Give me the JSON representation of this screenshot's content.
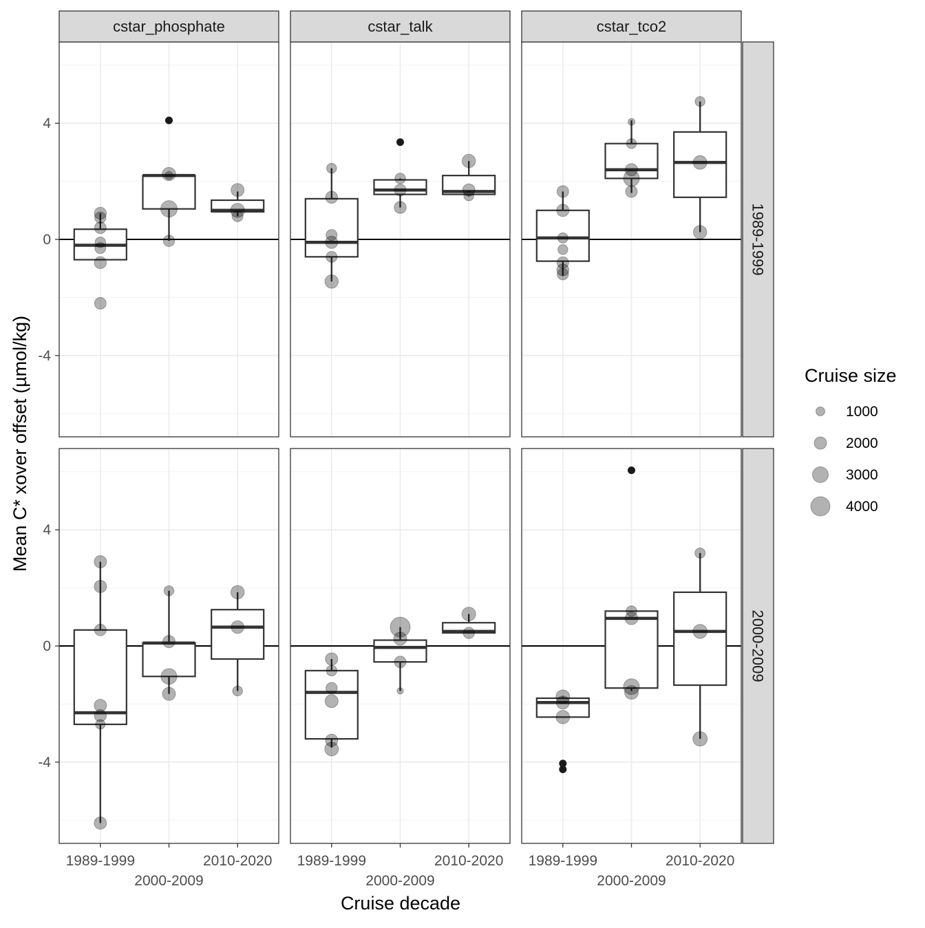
{
  "chart_data": {
    "type": "boxplot",
    "title": "",
    "xlabel": "Cruise decade",
    "ylabel": "Mean C* xover offset (µmol/kg)",
    "ylim": [
      -6.8,
      6.8
    ],
    "yticks": [
      -4,
      0,
      4
    ],
    "ytick_labels": [
      "-4",
      "0",
      "4"
    ],
    "grid": true,
    "categories": [
      "1989-1999",
      "2000-2009",
      "2010-2020"
    ],
    "column_facets": [
      "cstar_phosphate",
      "cstar_talk",
      "cstar_tco2"
    ],
    "row_facets": [
      "1989-1999",
      "2000-2009"
    ],
    "reference_line_y": 0,
    "legend": {
      "title": "Cruise size",
      "position": "right",
      "entries": [
        {
          "label": "1000",
          "value": 1000
        },
        {
          "label": "2000",
          "value": 2000
        },
        {
          "label": "3000",
          "value": 3000
        },
        {
          "label": "4000",
          "value": 4000
        }
      ]
    },
    "panels": [
      {
        "column": "cstar_phosphate",
        "row": "1989-1999",
        "boxes": [
          {
            "category": "1989-1999",
            "whisker_low": -0.7,
            "q1": -0.7,
            "median": -0.2,
            "q3": 0.35,
            "whisker_high": 0.9,
            "points": [
              {
                "y": 0.9,
                "size": 1900
              },
              {
                "y": 0.75,
                "size": 1700
              },
              {
                "y": 0.4,
                "size": 1800
              },
              {
                "y": -0.1,
                "size": 1500
              },
              {
                "y": -0.3,
                "size": 1600
              },
              {
                "y": -0.8,
                "size": 1900
              },
              {
                "y": -2.2,
                "size": 1800
              }
            ],
            "outliers": []
          },
          {
            "category": "2000-2009",
            "whisker_low": -0.05,
            "q1": 1.05,
            "median": 2.2,
            "q3": 2.2,
            "whisker_high": 2.2,
            "points": [
              {
                "y": 2.25,
                "size": 2300
              },
              {
                "y": 1.05,
                "size": 3200
              },
              {
                "y": -0.05,
                "size": 1700
              },
              {
                "y": 2.2,
                "size": 700
              }
            ],
            "outliers": [
              {
                "y": 4.1,
                "size": 800
              }
            ]
          },
          {
            "category": "2010-2020",
            "whisker_low": 0.8,
            "q1": 0.95,
            "median": 1.0,
            "q3": 1.35,
            "whisker_high": 1.65,
            "points": [
              {
                "y": 1.7,
                "size": 2200
              },
              {
                "y": 1.0,
                "size": 2500
              },
              {
                "y": 0.8,
                "size": 1600
              }
            ],
            "outliers": []
          }
        ]
      },
      {
        "column": "cstar_talk",
        "row": "1989-1999",
        "boxes": [
          {
            "category": "1989-1999",
            "whisker_low": -1.45,
            "q1": -0.6,
            "median": -0.1,
            "q3": 1.4,
            "whisker_high": 2.45,
            "points": [
              {
                "y": 2.45,
                "size": 1300
              },
              {
                "y": 1.45,
                "size": 1900
              },
              {
                "y": 0.15,
                "size": 1600
              },
              {
                "y": -0.1,
                "size": 2000
              },
              {
                "y": -0.6,
                "size": 1600
              },
              {
                "y": -1.45,
                "size": 2300
              }
            ],
            "outliers": []
          },
          {
            "category": "2000-2009",
            "whisker_low": 1.1,
            "q1": 1.55,
            "median": 1.7,
            "q3": 2.05,
            "whisker_high": 2.1,
            "points": [
              {
                "y": 2.1,
                "size": 1500
              },
              {
                "y": 1.7,
                "size": 1800
              },
              {
                "y": 1.1,
                "size": 1900
              }
            ],
            "outliers": [
              {
                "y": 3.35,
                "size": 3100
              }
            ]
          },
          {
            "category": "2010-2020",
            "whisker_low": 1.5,
            "q1": 1.55,
            "median": 1.65,
            "q3": 2.2,
            "whisker_high": 2.7,
            "points": [
              {
                "y": 2.7,
                "size": 2300
              },
              {
                "y": 1.7,
                "size": 2000
              },
              {
                "y": 1.5,
                "size": 1300
              }
            ],
            "outliers": []
          }
        ]
      },
      {
        "column": "cstar_tco2",
        "row": "1989-1999",
        "boxes": [
          {
            "category": "1989-1999",
            "whisker_low": -1.25,
            "q1": -0.75,
            "median": 0.05,
            "q3": 1.0,
            "whisker_high": 1.65,
            "points": [
              {
                "y": 1.65,
                "size": 1800
              },
              {
                "y": 1.0,
                "size": 2000
              },
              {
                "y": 0.05,
                "size": 1400
              },
              {
                "y": -0.35,
                "size": 1300
              },
              {
                "y": -0.8,
                "size": 1800
              },
              {
                "y": -1.05,
                "size": 1900
              },
              {
                "y": -1.2,
                "size": 1700
              }
            ],
            "outliers": []
          },
          {
            "category": "2000-2009",
            "whisker_low": 1.6,
            "q1": 2.1,
            "median": 2.4,
            "q3": 3.3,
            "whisker_high": 4.1,
            "points": [
              {
                "y": 4.05,
                "size": 400
              },
              {
                "y": 3.3,
                "size": 1300
              },
              {
                "y": 2.4,
                "size": 2000
              },
              {
                "y": 2.1,
                "size": 3000
              },
              {
                "y": 1.65,
                "size": 1800
              }
            ],
            "outliers": []
          },
          {
            "category": "2010-2020",
            "whisker_low": 0.25,
            "q1": 1.45,
            "median": 2.65,
            "q3": 3.7,
            "whisker_high": 4.75,
            "points": [
              {
                "y": 4.75,
                "size": 1300
              },
              {
                "y": 2.65,
                "size": 2400
              },
              {
                "y": 0.25,
                "size": 2300
              }
            ],
            "outliers": []
          }
        ]
      },
      {
        "column": "cstar_phosphate",
        "row": "2000-2009",
        "boxes": [
          {
            "category": "1989-1999",
            "whisker_low": -6.1,
            "q1": -2.7,
            "median": -2.3,
            "q3": 0.55,
            "whisker_high": 2.9,
            "points": [
              {
                "y": 2.9,
                "size": 2000
              },
              {
                "y": 2.05,
                "size": 2000
              },
              {
                "y": 0.55,
                "size": 1800
              },
              {
                "y": -2.05,
                "size": 2000
              },
              {
                "y": -2.4,
                "size": 1900
              },
              {
                "y": -2.7,
                "size": 1200
              },
              {
                "y": -6.1,
                "size": 2000
              }
            ],
            "outliers": []
          },
          {
            "category": "2000-2009",
            "whisker_low": -1.65,
            "q1": -1.05,
            "median": 0.1,
            "q3": 0.1,
            "whisker_high": 1.9,
            "points": [
              {
                "y": 1.9,
                "size": 1300
              },
              {
                "y": 0.15,
                "size": 2000
              },
              {
                "y": -1.05,
                "size": 3000
              },
              {
                "y": -1.65,
                "size": 2200
              }
            ],
            "outliers": []
          },
          {
            "category": "2010-2020",
            "whisker_low": -1.55,
            "q1": -0.45,
            "median": 0.65,
            "q3": 1.25,
            "whisker_high": 1.85,
            "points": [
              {
                "y": 1.85,
                "size": 2300
              },
              {
                "y": 0.65,
                "size": 2100
              },
              {
                "y": -1.55,
                "size": 1300
              }
            ],
            "outliers": []
          }
        ]
      },
      {
        "column": "cstar_talk",
        "row": "2000-2009",
        "boxes": [
          {
            "category": "1989-1999",
            "whisker_low": -3.5,
            "q1": -3.2,
            "median": -1.6,
            "q3": -0.85,
            "whisker_high": -0.45,
            "points": [
              {
                "y": -0.45,
                "size": 2000
              },
              {
                "y": -0.85,
                "size": 1500
              },
              {
                "y": -1.45,
                "size": 1700
              },
              {
                "y": -1.9,
                "size": 2200
              },
              {
                "y": -3.25,
                "size": 2000
              },
              {
                "y": -3.55,
                "size": 2400
              }
            ],
            "outliers": []
          },
          {
            "category": "2000-2009",
            "whisker_low": -1.55,
            "q1": -0.55,
            "median": -0.05,
            "q3": 0.2,
            "whisker_high": 0.65,
            "points": [
              {
                "y": 0.65,
                "size": 4200
              },
              {
                "y": 0.25,
                "size": 2200
              },
              {
                "y": -0.55,
                "size": 1800
              },
              {
                "y": -1.55,
                "size": 250
              }
            ],
            "outliers": []
          },
          {
            "category": "2010-2020",
            "whisker_low": 0.45,
            "q1": 0.45,
            "median": 0.5,
            "q3": 0.8,
            "whisker_high": 1.1,
            "points": [
              {
                "y": 1.1,
                "size": 2400
              },
              {
                "y": 0.45,
                "size": 1700
              }
            ],
            "outliers": []
          }
        ]
      },
      {
        "column": "cstar_tco2",
        "row": "2000-2009",
        "boxes": [
          {
            "category": "1989-1999",
            "whisker_low": -2.45,
            "q1": -2.45,
            "median": -1.95,
            "q3": -1.8,
            "whisker_high": -1.75,
            "points": [
              {
                "y": -1.75,
                "size": 2400
              },
              {
                "y": -1.95,
                "size": 2200
              },
              {
                "y": -2.45,
                "size": 2300
              }
            ],
            "outliers": [
              {
                "y": -4.05,
                "size": 2300
              },
              {
                "y": -4.25,
                "size": 1400
              }
            ]
          },
          {
            "category": "2000-2009",
            "whisker_low": -1.55,
            "q1": -1.45,
            "median": 0.95,
            "q3": 1.2,
            "whisker_high": 1.2,
            "points": [
              {
                "y": 1.2,
                "size": 1500
              },
              {
                "y": 0.95,
                "size": 2100
              },
              {
                "y": -1.4,
                "size": 3000
              },
              {
                "y": -1.6,
                "size": 2400
              }
            ],
            "outliers": [
              {
                "y": 6.05,
                "size": 600
              }
            ]
          },
          {
            "category": "2010-2020",
            "whisker_low": -3.2,
            "q1": -1.35,
            "median": 0.5,
            "q3": 1.85,
            "whisker_high": 3.2,
            "points": [
              {
                "y": 3.2,
                "size": 1400
              },
              {
                "y": 0.5,
                "size": 2500
              },
              {
                "y": -3.2,
                "size": 2600
              }
            ],
            "outliers": []
          }
        ]
      }
    ]
  }
}
